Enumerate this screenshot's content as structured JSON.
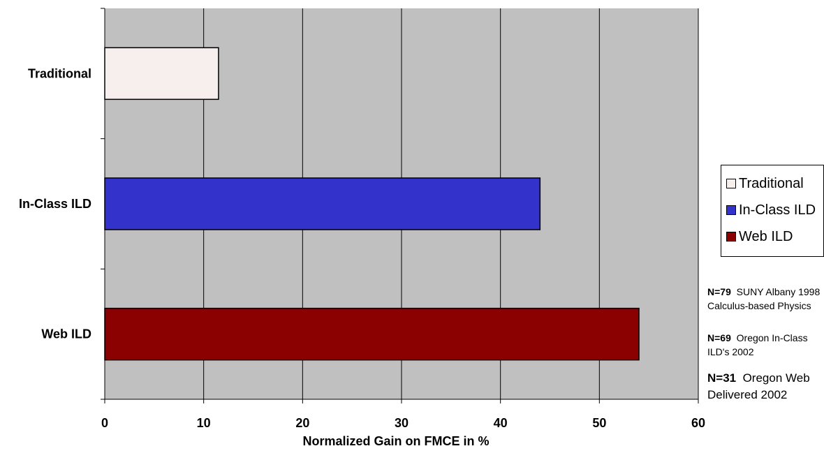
{
  "chart_data": {
    "type": "bar",
    "orientation": "horizontal",
    "categories": [
      "Traditional",
      "In-Class ILD",
      "Web ILD"
    ],
    "values": [
      11.5,
      44,
      54
    ],
    "xlabel": "Normalized Gain on FMCE in %",
    "ylabel": "",
    "xlim": [
      0,
      60
    ],
    "xticks": [
      "0",
      "10",
      "20",
      "30",
      "40",
      "50",
      "60"
    ],
    "grid": true,
    "legend_position": "right",
    "colors": {
      "Traditional": "#f7eeee",
      "In-Class ILD": "#3333cc",
      "Web ILD": "#8b0000",
      "plot_background": "#c0c0c0"
    },
    "legend": [
      "Traditional",
      "In-Class ILD",
      "Web ILD"
    ]
  },
  "notes": [
    {
      "bold": "N=79",
      "text": "SUNY Albany 1998 Calculus-based Physics"
    },
    {
      "bold": "N=69",
      "text": "Oregon In-Class ILD's 2002"
    },
    {
      "bold": "N=31",
      "text": "Oregon Web Delivered 2002"
    }
  ]
}
